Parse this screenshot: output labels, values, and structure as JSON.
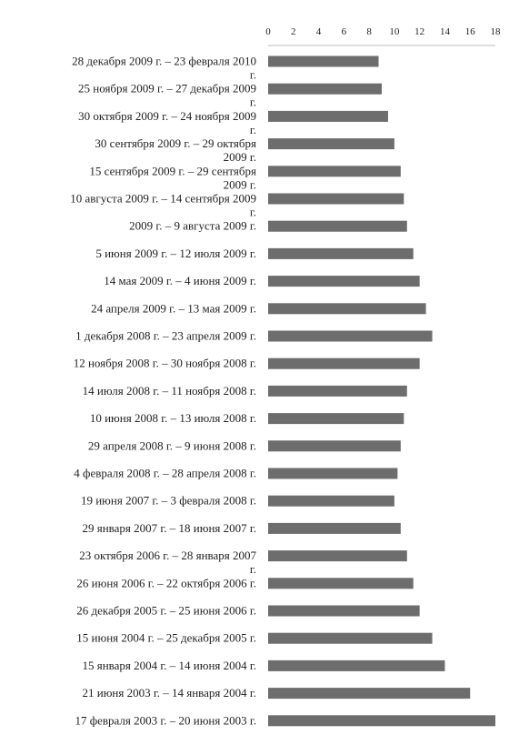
{
  "chart_data": {
    "type": "bar",
    "orientation": "horizontal",
    "title": "",
    "xlabel": "",
    "ylabel": "",
    "xlim": [
      0,
      18
    ],
    "x_ticks": [
      "0",
      "2",
      "4",
      "6",
      "8",
      "10",
      "12",
      "14",
      "16",
      "18"
    ],
    "x_axis_position": "top",
    "grid": false,
    "bar_color": "#6d6d6d",
    "categories": [
      [
        "28 декабря  2009 г. – 23 февраля 2010",
        "г."
      ],
      [
        "25 ноября 2009 г. – 27 декабря 2009",
        "г."
      ],
      [
        "30 октября 2009 г. – 24 ноября 2009",
        "г."
      ],
      [
        "30 сентября 2009 г. – 29 октября",
        "2009 г."
      ],
      [
        "15 сентября 2009 г. – 29 сентября",
        "2009 г."
      ],
      [
        "10 августа 2009 г. – 14 сентября 2009",
        "г."
      ],
      [
        "2009 г. – 9 августа 2009 г."
      ],
      [
        "5 июня 2009 г. – 12 июля 2009 г."
      ],
      [
        "14 мая 2009 г. – 4 июня 2009 г."
      ],
      [
        "24 апреля 2009 г. – 13 мая 2009 г."
      ],
      [
        "1 декабря 2008 г. – 23 апреля 2009 г."
      ],
      [
        "12 ноября 2008 г. – 30 ноября 2008 г."
      ],
      [
        "14 июля 2008 г. – 11 ноября 2008 г."
      ],
      [
        "10 июня 2008 г. – 13 июля 2008 г."
      ],
      [
        "29 апреля 2008 г. – 9 июня 2008 г."
      ],
      [
        "4 февраля 2008 г. – 28 апреля 2008 г."
      ],
      [
        "19 июня 2007 г. – 3 февраля 2008 г."
      ],
      [
        "29 января 2007 г. – 18 июня 2007 г."
      ],
      [
        "23 октября 2006 г. – 28 января 2007",
        "г."
      ],
      [
        "26 июня 2006 г. – 22 октября 2006 г."
      ],
      [
        "26 декабря 2005 г. – 25 июня 2006 г."
      ],
      [
        "15 июня 2004 г. – 25 декабря 2005 г."
      ],
      [
        "15 января 2004 г. – 14 июня 2004 г."
      ],
      [
        "21 июня 2003 г. – 14 января 2004 г."
      ],
      [
        "17 февраля 2003 г. – 20 июня 2003 г."
      ]
    ],
    "values": [
      8.75,
      9.0,
      9.5,
      10.0,
      10.5,
      10.75,
      11.0,
      11.5,
      12.0,
      12.5,
      13.0,
      12.0,
      11.0,
      10.75,
      10.5,
      10.25,
      10.0,
      10.5,
      11.0,
      11.5,
      12.0,
      13.0,
      14.0,
      16.0,
      18.0
    ]
  }
}
